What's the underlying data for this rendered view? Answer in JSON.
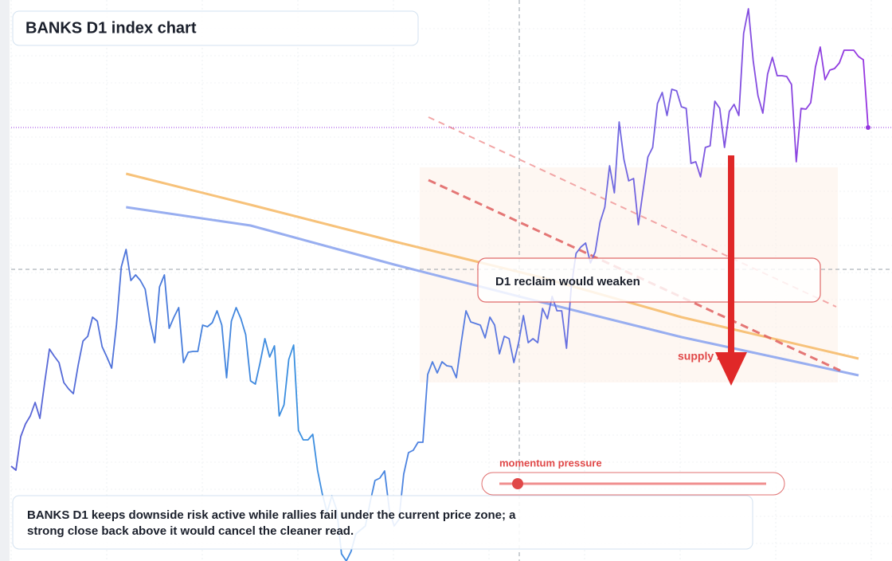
{
  "chart_data": {
    "type": "line",
    "title": "BANKS D1 index chart",
    "caption": "BANKS D1 keeps downside risk active while rallies fail under the current price zone; a strong close back above it would cancel the cleaner read.",
    "annotations": [
      "D1 reclaim would weaken",
      "supply zone",
      "momentum pressure"
    ],
    "ylim": [
      0,
      704
    ],
    "grid": true,
    "series": [
      {
        "color": [
          "#5b62d6",
          "#3a90e0",
          "#6a6ee0",
          "#9636e0"
        ],
        "values": [
          119,
          114,
          156,
          172,
          182,
          199,
          179,
          224,
          266,
          257,
          249,
          224,
          216,
          210,
          246,
          276,
          282,
          306,
          301,
          269,
          256,
          242,
          296,
          369,
          391,
          352,
          359,
          352,
          341,
          301,
          274,
          344,
          359,
          292,
          306,
          318,
          249,
          262,
          263,
          263,
          296,
          294,
          299,
          314,
          296,
          230,
          301,
          318,
          304,
          284,
          226,
          222,
          249,
          279,
          256,
          270,
          182,
          196,
          253,
          271,
          164,
          152,
          152,
          159,
          114,
          84,
          61,
          82,
          64,
          9,
          0,
          12,
          34,
          39,
          44,
          74,
          101,
          104,
          113,
          64,
          44,
          52,
          109,
          136,
          139,
          149,
          149,
          234,
          250,
          236,
          250,
          245,
          244,
          230,
          274,
          314,
          300,
          298,
          296,
          280,
          306,
          296,
          260,
          282,
          279,
          249,
          274,
          308,
          274,
          279,
          274,
          317,
          304,
          332,
          314,
          314,
          267,
          344,
          386,
          394,
          399,
          374,
          388,
          425,
          444,
          496,
          462,
          551,
          504,
          477,
          480,
          422,
          465,
          507,
          519,
          574,
          588,
          559,
          592,
          590,
          570,
          568,
          499,
          501,
          482,
          519,
          521,
          577,
          568,
          519,
          564,
          573,
          559,
          662,
          693,
          628,
          584,
          562,
          611,
          632,
          609,
          609,
          608,
          598,
          501,
          568,
          567,
          575,
          620,
          645,
          604,
          616,
          618,
          625,
          641,
          641,
          641,
          633,
          629,
          544
        ]
      },
      {
        "color": "#f7c27a",
        "x": [
          24,
          50,
          80,
          110,
          140,
          177
        ],
        "values": [
          486,
          447,
          401,
          357,
          306,
          254
        ]
      },
      {
        "color": "#98aef0",
        "x": [
          24,
          50,
          80,
          110,
          140,
          177
        ],
        "values": [
          444,
          421,
          372,
          326,
          281,
          233
        ]
      }
    ]
  }
}
